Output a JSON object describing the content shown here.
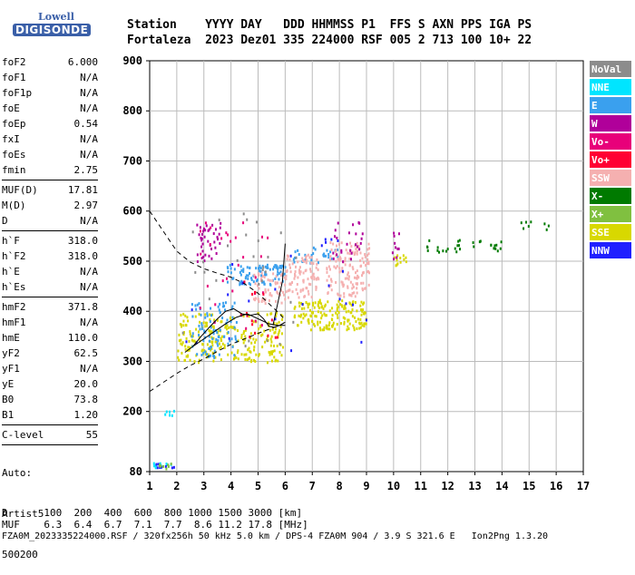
{
  "logo": {
    "top": "Lowell",
    "bottom": "DIGISONDE"
  },
  "header": {
    "line1": "Station    YYYY DAY   DDD HHMMSS P1  FFS S AXN PPS IGA PS",
    "line2": "Fortaleza  2023 Dez01 335 224000 RSF 005 2 713 100 10+ 22"
  },
  "params": [
    {
      "name": "foF2",
      "value": "6.000",
      "sep_after": false
    },
    {
      "name": "foF1",
      "value": "N/A",
      "sep_after": false
    },
    {
      "name": "foF1p",
      "value": "N/A",
      "sep_after": false
    },
    {
      "name": "foE",
      "value": "N/A",
      "sep_after": false
    },
    {
      "name": "foEp",
      "value": "0.54",
      "sep_after": false
    },
    {
      "name": "fxI",
      "value": "N/A",
      "sep_after": false
    },
    {
      "name": "foEs",
      "value": "N/A",
      "sep_after": false
    },
    {
      "name": "fmin",
      "value": "2.75",
      "sep_after": true
    },
    {
      "name": "MUF(D)",
      "value": "17.81",
      "sep_after": false
    },
    {
      "name": "M(D)",
      "value": "2.97",
      "sep_after": false
    },
    {
      "name": "D",
      "value": "N/A",
      "sep_after": true
    },
    {
      "name": "h`F",
      "value": "318.0",
      "sep_after": false
    },
    {
      "name": "h`F2",
      "value": "318.0",
      "sep_after": false
    },
    {
      "name": "h`E",
      "value": "N/A",
      "sep_after": false
    },
    {
      "name": "h`Es",
      "value": "N/A",
      "sep_after": true
    },
    {
      "name": "hmF2",
      "value": "371.8",
      "sep_after": false
    },
    {
      "name": "hmF1",
      "value": "N/A",
      "sep_after": false
    },
    {
      "name": "hmE",
      "value": "110.0",
      "sep_after": false
    },
    {
      "name": "yF2",
      "value": "62.5",
      "sep_after": false
    },
    {
      "name": "yF1",
      "value": "N/A",
      "sep_after": false
    },
    {
      "name": "yE",
      "value": "20.0",
      "sep_after": false
    },
    {
      "name": "B0",
      "value": "73.8",
      "sep_after": false
    },
    {
      "name": "B1",
      "value": "1.20",
      "sep_after": true
    },
    {
      "name": "C-level",
      "value": "55",
      "sep_after": true
    }
  ],
  "auto": {
    "line1": "Auto:",
    "line2": "Artist5",
    "line3": "500200"
  },
  "bottom": {
    "d_line": "D      100  200  400  600  800 1000 1500 3000 [km]",
    "muf_line": "MUF    6.3  6.4  6.7  7.1  7.7  8.6 11.2 17.8 [MHz]",
    "footer": "FZA0M_2023335224000.RSF / 320fx256h 50 kHz 5.0 km / DPS-4 FZA0M 904 / 3.9 S 321.6 E   Ion2Png 1.3.20"
  },
  "chart_data": {
    "type": "scatter",
    "xlim": [
      1,
      17
    ],
    "ylim": [
      80,
      900
    ],
    "x_ticks": [
      1,
      2,
      3,
      4,
      5,
      6,
      7,
      8,
      9,
      10,
      11,
      12,
      13,
      14,
      15,
      16,
      17
    ],
    "y_ticks": [
      80,
      200,
      300,
      400,
      500,
      600,
      700,
      800,
      900
    ],
    "grid": true,
    "legend_position": "right",
    "legend": [
      {
        "label": "NoVal",
        "color": "#8c8c8c"
      },
      {
        "label": "NNE",
        "color": "#00e5ff"
      },
      {
        "label": "E",
        "color": "#3aa0ee"
      },
      {
        "label": "W",
        "color": "#b0009a"
      },
      {
        "label": "Vo-",
        "color": "#e8007a"
      },
      {
        "label": "Vo+",
        "color": "#ff0033"
      },
      {
        "label": "SSW",
        "color": "#f5b0b0"
      },
      {
        "label": "X-",
        "color": "#007a00"
      },
      {
        "label": "X+",
        "color": "#80c040"
      },
      {
        "label": "SSE",
        "color": "#d8d800"
      },
      {
        "label": "NNW",
        "color": "#2020ff"
      }
    ],
    "clusters": [
      {
        "color": "#d8d800",
        "x": [
          2.0,
          5.9
        ],
        "y": [
          300,
          400
        ],
        "n": 260
      },
      {
        "color": "#d8d800",
        "x": [
          6.3,
          9.0
        ],
        "y": [
          365,
          425
        ],
        "n": 170
      },
      {
        "color": "#d8d800",
        "x": [
          10.0,
          10.5
        ],
        "y": [
          490,
          515
        ],
        "n": 12
      },
      {
        "color": "#3aa0ee",
        "x": [
          2.5,
          4.2
        ],
        "y": [
          310,
          420
        ],
        "n": 90
      },
      {
        "color": "#3aa0ee",
        "x": [
          3.8,
          6.0
        ],
        "y": [
          455,
          495
        ],
        "n": 90
      },
      {
        "color": "#3aa0ee",
        "x": [
          6.2,
          8.0
        ],
        "y": [
          498,
          535
        ],
        "n": 30
      },
      {
        "color": "#f5b0b0",
        "x": [
          4.8,
          6.0
        ],
        "y": [
          418,
          480
        ],
        "n": 60
      },
      {
        "color": "#f5b0b0",
        "x": [
          6.0,
          7.2
        ],
        "y": [
          430,
          515
        ],
        "n": 90
      },
      {
        "color": "#f5b0b0",
        "x": [
          7.5,
          9.1
        ],
        "y": [
          430,
          540
        ],
        "n": 140
      },
      {
        "color": "#b0009a",
        "x": [
          2.7,
          3.6
        ],
        "y": [
          500,
          580
        ],
        "n": 40
      },
      {
        "color": "#b0009a",
        "x": [
          7.7,
          9.0
        ],
        "y": [
          500,
          580
        ],
        "n": 25
      },
      {
        "color": "#b0009a",
        "x": [
          9.9,
          10.3
        ],
        "y": [
          500,
          570
        ],
        "n": 10
      },
      {
        "color": "#e8007a",
        "x": [
          2.8,
          5.5
        ],
        "y": [
          360,
          580
        ],
        "n": 30
      },
      {
        "color": "#ff0033",
        "x": [
          4.3,
          5.8
        ],
        "y": [
          340,
          480
        ],
        "n": 15
      },
      {
        "color": "#8c8c8c",
        "x": [
          1.9,
          6.5
        ],
        "y": [
          320,
          600
        ],
        "n": 30
      },
      {
        "color": "#007a00",
        "x": [
          11.1,
          14.1
        ],
        "y": [
          520,
          545
        ],
        "n": 30
      },
      {
        "color": "#007a00",
        "x": [
          14.6,
          15.7
        ],
        "y": [
          565,
          590
        ],
        "n": 8
      },
      {
        "color": "#2020ff",
        "x": [
          2.0,
          9.0
        ],
        "y": [
          320,
          560
        ],
        "n": 25
      },
      {
        "color": "#00e5ff",
        "x": [
          1.5,
          1.9
        ],
        "y": [
          190,
          205
        ],
        "n": 6
      },
      {
        "color": "#00e5ff",
        "x": [
          1.1,
          1.9
        ],
        "y": [
          90,
          100
        ],
        "n": 10
      },
      {
        "color": "#2020ff",
        "x": [
          1.1,
          1.9
        ],
        "y": [
          88,
          98
        ],
        "n": 8
      },
      {
        "color": "#80c040",
        "x": [
          1.2,
          1.8
        ],
        "y": [
          88,
          98
        ],
        "n": 8
      }
    ],
    "dashed_upper": [
      [
        1.0,
        600
      ],
      [
        1.5,
        560
      ],
      [
        2.0,
        520
      ],
      [
        2.5,
        498
      ],
      [
        3.0,
        485
      ],
      [
        3.5,
        476
      ],
      [
        4.0,
        468
      ],
      [
        4.5,
        455
      ],
      [
        5.0,
        436
      ],
      [
        5.5,
        410
      ],
      [
        5.8,
        395
      ],
      [
        6.0,
        382
      ]
    ],
    "dashed_lower": [
      [
        1.0,
        240
      ],
      [
        1.5,
        258
      ],
      [
        2.0,
        276
      ],
      [
        2.5,
        292
      ],
      [
        3.0,
        305
      ],
      [
        3.5,
        320
      ],
      [
        4.0,
        334
      ],
      [
        4.5,
        345
      ],
      [
        5.0,
        356
      ],
      [
        5.5,
        366
      ],
      [
        5.8,
        372
      ],
      [
        6.0,
        378
      ]
    ],
    "trace": [
      [
        2.6,
        330
      ],
      [
        2.9,
        350
      ],
      [
        3.2,
        368
      ],
      [
        3.5,
        385
      ],
      [
        3.8,
        400
      ],
      [
        4.1,
        405
      ],
      [
        4.4,
        395
      ],
      [
        4.7,
        392
      ],
      [
        5.0,
        395
      ],
      [
        5.2,
        385
      ],
      [
        5.4,
        370
      ],
      [
        5.6,
        368
      ],
      [
        5.8,
        372
      ],
      [
        6.0,
        378
      ]
    ],
    "trace_vertical": [
      [
        5.55,
        372
      ],
      [
        5.9,
        460
      ],
      [
        6.0,
        535
      ]
    ],
    "profile": [
      [
        2.3,
        318
      ],
      [
        2.6,
        330
      ],
      [
        3.0,
        345
      ],
      [
        3.4,
        360
      ],
      [
        3.8,
        375
      ],
      [
        4.2,
        388
      ],
      [
        4.6,
        395
      ],
      [
        5.0,
        385
      ],
      [
        5.4,
        375
      ],
      [
        5.7,
        372
      ],
      [
        6.0,
        372
      ]
    ]
  }
}
